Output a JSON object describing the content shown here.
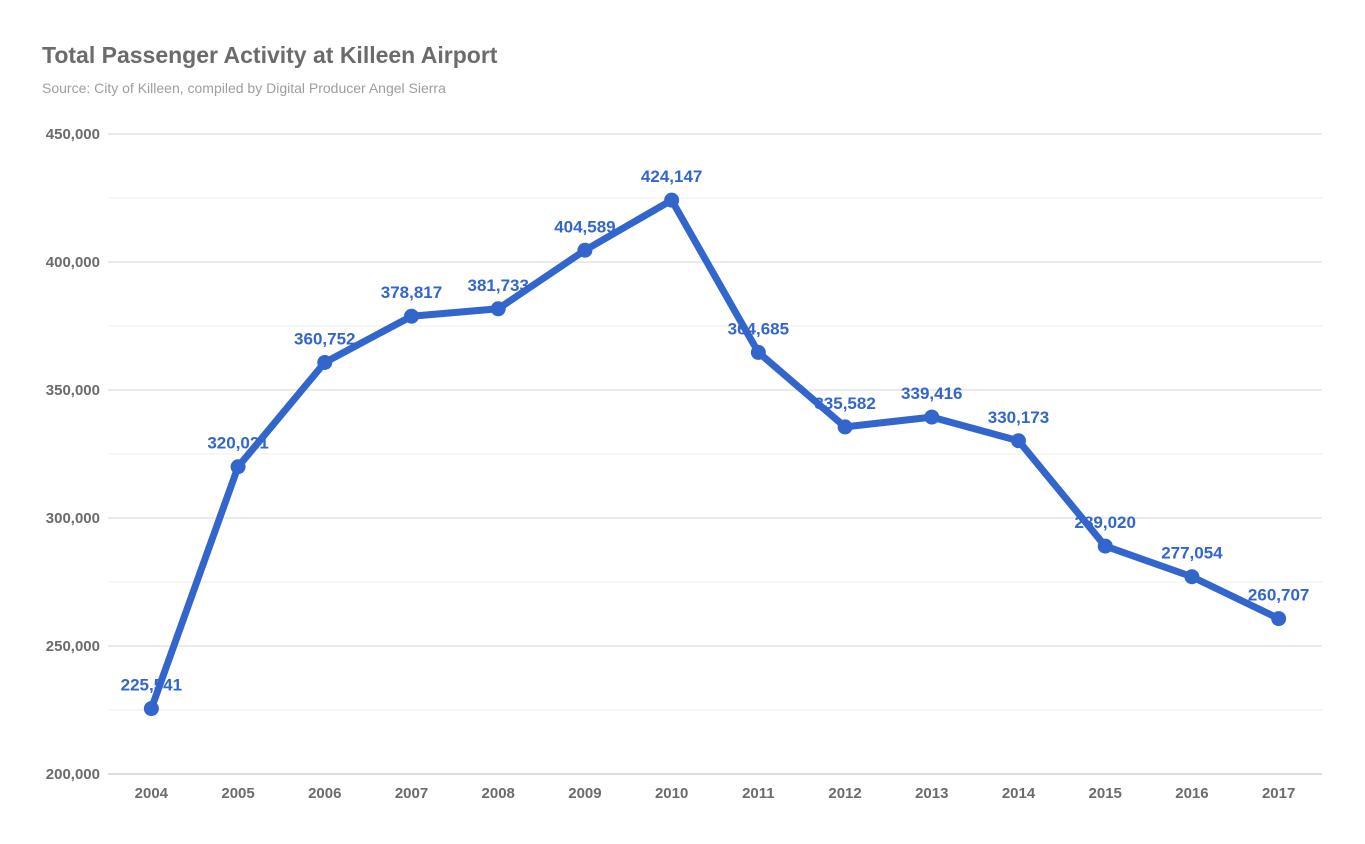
{
  "chart_data": {
    "type": "line",
    "title": "Total Passenger Activity at Killeen Airport",
    "subtitle": "Source: City of Killeen, compiled by Digital Producer Angel Sierra",
    "xlabel": "",
    "ylabel": "",
    "categories": [
      "2004",
      "2005",
      "2006",
      "2007",
      "2008",
      "2009",
      "2010",
      "2011",
      "2012",
      "2013",
      "2014",
      "2015",
      "2016",
      "2017"
    ],
    "values": [
      225541,
      320021,
      360752,
      378817,
      381733,
      404589,
      424147,
      364685,
      335582,
      339416,
      330173,
      289020,
      277054,
      260707
    ],
    "data_labels": [
      "225,541",
      "320,021",
      "360,752",
      "378,817",
      "381,733",
      "404,589",
      "424,147",
      "364,685",
      "335,582",
      "339,416",
      "330,173",
      "289,020",
      "277,054",
      "260,707"
    ],
    "ylim": [
      200000,
      450000
    ],
    "yticks": [
      200000,
      250000,
      300000,
      350000,
      400000,
      450000
    ],
    "ytick_labels": [
      "200,000",
      "250,000",
      "300,000",
      "350,000",
      "400,000",
      "450,000"
    ],
    "grid": true,
    "legend": "none",
    "line_color": "#3366cc",
    "text_color": "#6b6b6b"
  }
}
